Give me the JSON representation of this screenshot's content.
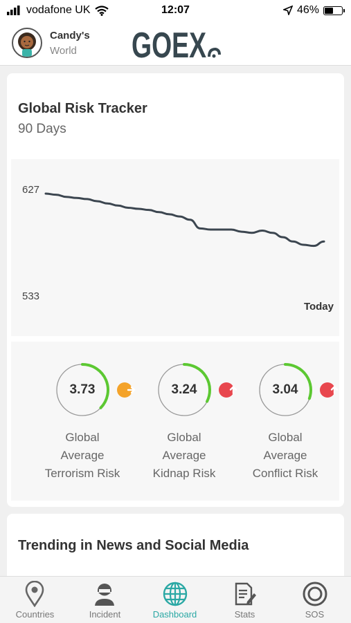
{
  "status": {
    "carrier": "vodafone UK",
    "time": "12:07",
    "battery": "46%",
    "battery_level": 0.46
  },
  "header": {
    "user_name": "Candy's",
    "user_sub": "World",
    "logo_text": "GOEX"
  },
  "risk_tracker": {
    "title": "Global Risk Tracker",
    "subtitle": "90 Days",
    "y_max_label": "627",
    "y_min_label": "533",
    "today_label": "Today"
  },
  "chart_data": {
    "type": "line",
    "ylim": [
      533,
      627
    ],
    "values": [
      627,
      626,
      624,
      623,
      622,
      620,
      618,
      616,
      614,
      613,
      612,
      610,
      608,
      606,
      603,
      595,
      594,
      594,
      594,
      592,
      591,
      593,
      591,
      587,
      583,
      580,
      579,
      583
    ],
    "y_tick_labels": [
      "627",
      "533"
    ],
    "x_end_label": "Today",
    "grid": false,
    "color": "#3c4650"
  },
  "gauges": [
    {
      "value": "3.73",
      "fraction": 0.373,
      "label_lines": [
        "Global",
        "Average",
        "Terrorism Risk"
      ],
      "trend": "flat",
      "badge_color": "#f4a32a"
    },
    {
      "value": "3.24",
      "fraction": 0.324,
      "label_lines": [
        "Global",
        "Average",
        "Kidnap Risk"
      ],
      "trend": "up",
      "badge_color": "#e8474e"
    },
    {
      "value": "3.04",
      "fraction": 0.304,
      "label_lines": [
        "Global",
        "Average",
        "Conflict Risk"
      ],
      "trend": "up",
      "badge_color": "#e8474e"
    }
  ],
  "gauge_style": {
    "arc_color": "#5cc832",
    "ring_color": "#999999"
  },
  "trending": {
    "title": "Trending in News and Social Media"
  },
  "tabs": [
    {
      "label": "Countries",
      "icon": "location-pin-icon",
      "active": false
    },
    {
      "label": "Incident",
      "icon": "incident-person-icon",
      "active": false
    },
    {
      "label": "Dashboard",
      "icon": "globe-icon",
      "active": true
    },
    {
      "label": "Stats",
      "icon": "document-stats-icon",
      "active": false
    },
    {
      "label": "SOS",
      "icon": "sos-icon",
      "active": false
    }
  ]
}
